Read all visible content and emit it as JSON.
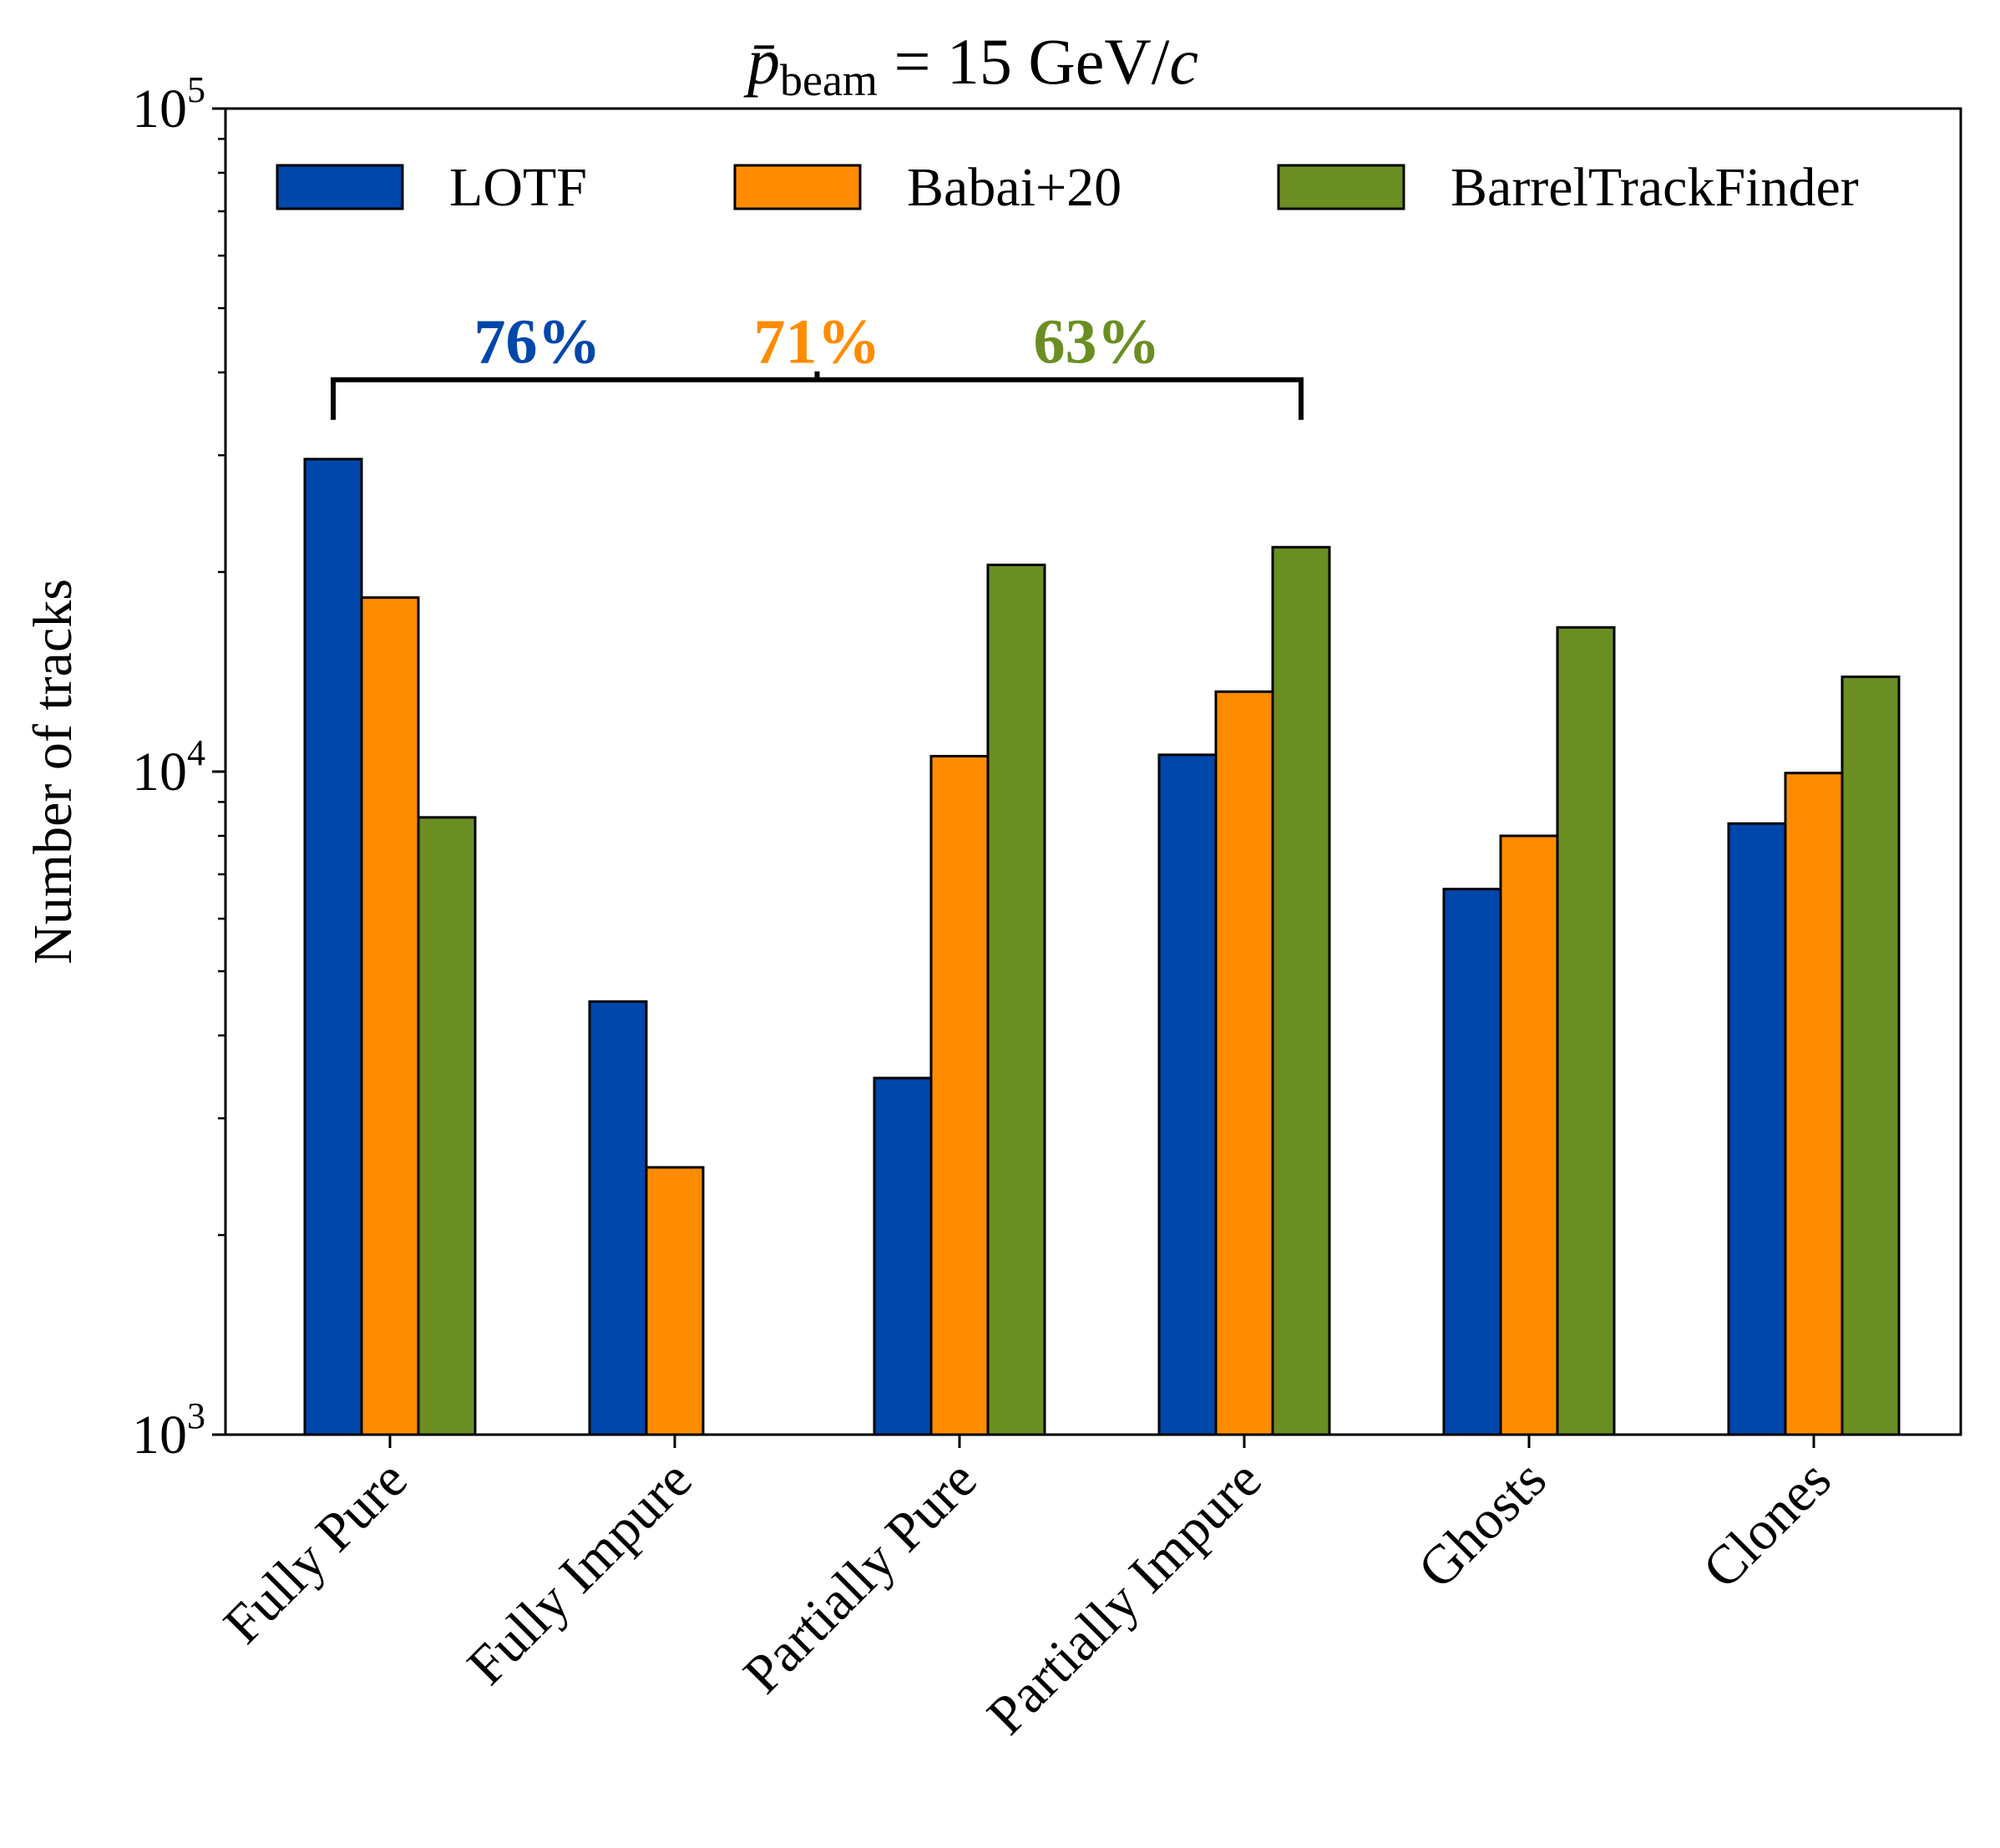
{
  "chart_data": {
    "type": "bar",
    "title": {
      "main": "p̄",
      "sub": "beam",
      "rest": " = 15 GeV/",
      "italic": "c"
    },
    "ylabel": "Number of tracks",
    "yscale": "log",
    "ylim": [
      1000,
      100000
    ],
    "y_ticks": [
      {
        "value": 1000,
        "base": "10",
        "exp": "3"
      },
      {
        "value": 10000,
        "base": "10",
        "exp": "4"
      },
      {
        "value": 100000,
        "base": "10",
        "exp": "5"
      }
    ],
    "categories": [
      "Fully Pure",
      "Fully Impure",
      "Partially Pure",
      "Partially Impure",
      "Ghosts",
      "Clones"
    ],
    "series": [
      {
        "name": "LOTF",
        "color": "#0047ab",
        "values": [
          29600,
          4500,
          3450,
          10600,
          6650,
          8350
        ]
      },
      {
        "name": "Babai+20",
        "color": "#ff8c00",
        "values": [
          18300,
          2530,
          10550,
          13200,
          8000,
          9950
        ]
      },
      {
        "name": "BarrelTrackFinder",
        "color": "#6b8e23",
        "values": [
          8530,
          null,
          20500,
          21800,
          16500,
          13900
        ]
      }
    ],
    "legend_position": "top",
    "annotation": {
      "span_categories": [
        "Fully Pure",
        "Partially Impure"
      ],
      "level": 39000,
      "labels": [
        {
          "text": "76%",
          "color": "#0047ab"
        },
        {
          "text": "71%",
          "color": "#ff8c00"
        },
        {
          "text": "63%",
          "color": "#6b8e23"
        }
      ]
    }
  }
}
